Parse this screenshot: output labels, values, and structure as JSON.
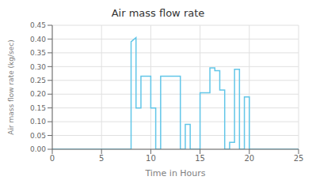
{
  "chart_data": {
    "type": "line",
    "title": "Air mass flow rate",
    "xlabel": "Time in Hours",
    "ylabel": "Air mass flow rate (kg/sec)",
    "xlim": [
      0,
      25
    ],
    "ylim": [
      0,
      0.45
    ],
    "xticks": [
      0,
      5,
      10,
      15,
      20,
      25
    ],
    "yticks": [
      {
        "value": 0,
        "label": "0.00"
      },
      0.05,
      {
        "value": 0.1,
        "label": "0.10"
      },
      0.15,
      {
        "value": 0.2,
        "label": "0.20"
      },
      0.25,
      {
        "value": 0.3,
        "label": "0.30"
      },
      0.35,
      {
        "value": 0.4,
        "label": "0.40"
      },
      0.45
    ],
    "color": "#62C6E8",
    "grid": true,
    "x": [
      0,
      8,
      8,
      8.5,
      8.5,
      9,
      9,
      10,
      10,
      10.5,
      10.5,
      11,
      11,
      13,
      13,
      13.5,
      13.5,
      14,
      14,
      15,
      15,
      16,
      16,
      16.5,
      16.5,
      17,
      17,
      17.5,
      17.5,
      18,
      18,
      18.5,
      18.5,
      19,
      19,
      19.5,
      19.5,
      20,
      20,
      25
    ],
    "values": [
      0,
      0,
      0.39,
      0.405,
      0.15,
      0.15,
      0.265,
      0.265,
      0.15,
      0.15,
      0,
      0,
      0.265,
      0.265,
      0,
      0,
      0.09,
      0.09,
      0,
      0,
      0.205,
      0.205,
      0.295,
      0.295,
      0.285,
      0.285,
      0.215,
      0.215,
      0,
      0,
      0.025,
      0.025,
      0.29,
      0.29,
      0,
      0,
      0.19,
      0.19,
      0,
      0
    ]
  }
}
